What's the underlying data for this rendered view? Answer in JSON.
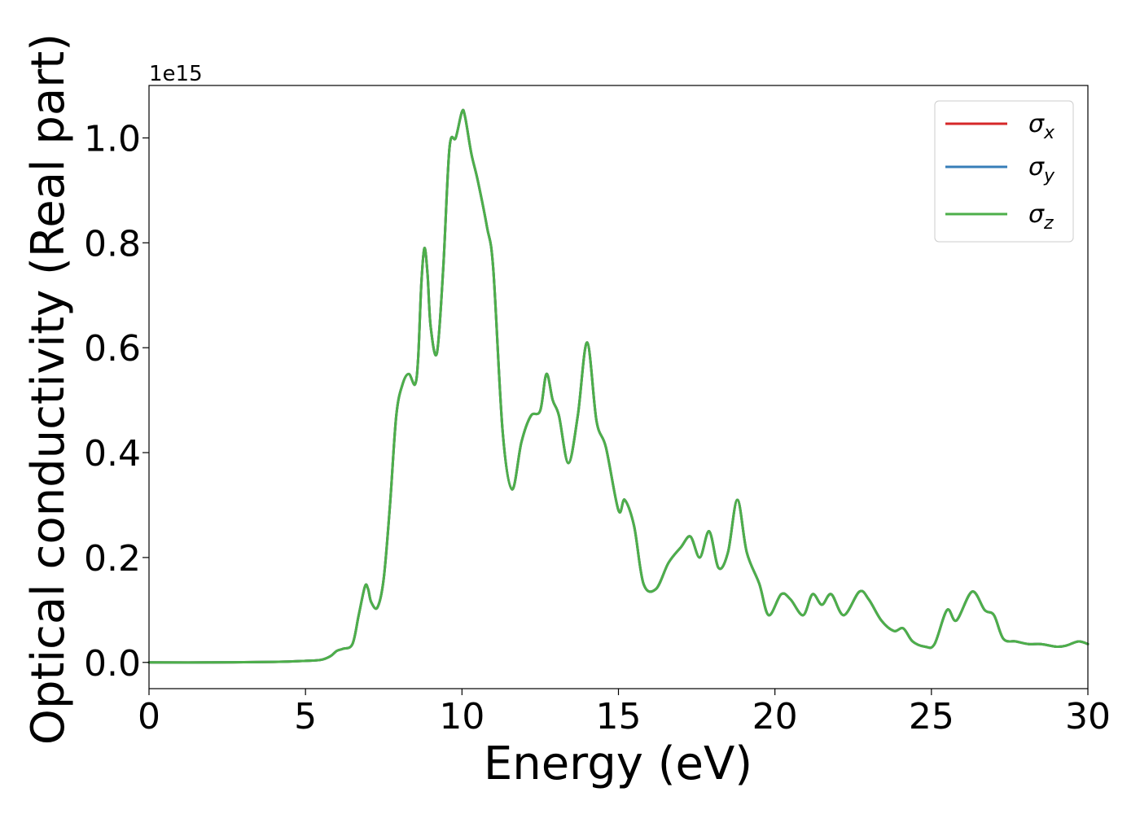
{
  "chart_data": {
    "type": "line",
    "title": "",
    "xlabel": "Energy (eV)",
    "ylabel": "Optical conductivity (Real part)",
    "y_scale_label": "1e15",
    "xlim": [
      0,
      30
    ],
    "ylim": [
      -0.05,
      1.1
    ],
    "x_ticks": [
      0,
      5,
      10,
      15,
      20,
      25,
      30
    ],
    "x_tick_labels": [
      "0",
      "5",
      "10",
      "15",
      "20",
      "25",
      "30"
    ],
    "y_ticks": [
      0.0,
      0.2,
      0.4,
      0.6,
      0.8,
      1.0
    ],
    "y_tick_labels": [
      "0.0",
      "0.2",
      "0.4",
      "0.6",
      "0.8",
      "1.0"
    ],
    "grid": false,
    "legend_position": "top-right",
    "legend": [
      {
        "label": "σ",
        "sub": "x",
        "color": "#d62728"
      },
      {
        "label": "σ",
        "sub": "y",
        "color": "#377eb8"
      },
      {
        "label": "σ",
        "sub": "z",
        "color": "#4daf4a"
      }
    ],
    "series": [
      {
        "name": "σx",
        "color": "#d62728",
        "x": [
          0,
          2,
          4,
          5,
          5.5,
          5.8,
          6.0,
          6.2,
          6.5,
          6.7,
          6.9,
          7.0,
          7.1,
          7.3,
          7.5,
          7.7,
          7.9,
          8.1,
          8.3,
          8.5,
          8.6,
          8.7,
          8.8,
          8.9,
          9.0,
          9.2,
          9.4,
          9.6,
          9.8,
          10.0,
          10.1,
          10.3,
          10.5,
          10.8,
          11.0,
          11.3,
          11.6,
          11.9,
          12.2,
          12.5,
          12.7,
          12.9,
          13.1,
          13.4,
          13.7,
          14.0,
          14.3,
          14.6,
          15.0,
          15.2,
          15.5,
          15.8,
          16.2,
          16.6,
          17.0,
          17.3,
          17.6,
          17.9,
          18.2,
          18.5,
          18.8,
          19.1,
          19.5,
          19.8,
          20.2,
          20.5,
          20.9,
          21.2,
          21.5,
          21.8,
          22.2,
          22.7,
          23.0,
          23.4,
          23.8,
          24.1,
          24.4,
          24.8,
          25.1,
          25.5,
          25.8,
          26.3,
          26.7,
          27.0,
          27.3,
          27.7,
          28.1,
          28.5,
          29.0,
          29.3,
          29.7,
          30.0
        ],
        "values": [
          0.0,
          0.0,
          0.001,
          0.003,
          0.005,
          0.012,
          0.022,
          0.026,
          0.035,
          0.09,
          0.145,
          0.14,
          0.115,
          0.105,
          0.16,
          0.3,
          0.47,
          0.53,
          0.55,
          0.53,
          0.58,
          0.72,
          0.79,
          0.74,
          0.64,
          0.59,
          0.75,
          0.98,
          1.0,
          1.05,
          1.04,
          0.97,
          0.92,
          0.83,
          0.75,
          0.44,
          0.33,
          0.42,
          0.47,
          0.48,
          0.55,
          0.5,
          0.47,
          0.38,
          0.47,
          0.61,
          0.46,
          0.41,
          0.29,
          0.31,
          0.26,
          0.15,
          0.14,
          0.19,
          0.22,
          0.24,
          0.2,
          0.25,
          0.18,
          0.21,
          0.31,
          0.21,
          0.15,
          0.09,
          0.13,
          0.12,
          0.09,
          0.13,
          0.11,
          0.13,
          0.09,
          0.135,
          0.12,
          0.08,
          0.06,
          0.065,
          0.04,
          0.03,
          0.035,
          0.1,
          0.08,
          0.135,
          0.1,
          0.09,
          0.045,
          0.04,
          0.035,
          0.035,
          0.03,
          0.032,
          0.04,
          0.035
        ]
      },
      {
        "name": "σy",
        "color": "#377eb8",
        "x": [
          0,
          2,
          4,
          5,
          5.5,
          5.8,
          6.0,
          6.2,
          6.5,
          6.7,
          6.9,
          7.0,
          7.1,
          7.3,
          7.5,
          7.7,
          7.9,
          8.1,
          8.3,
          8.5,
          8.6,
          8.7,
          8.8,
          8.9,
          9.0,
          9.2,
          9.4,
          9.6,
          9.8,
          10.0,
          10.1,
          10.3,
          10.5,
          10.8,
          11.0,
          11.3,
          11.6,
          11.9,
          12.2,
          12.5,
          12.7,
          12.9,
          13.1,
          13.4,
          13.7,
          14.0,
          14.3,
          14.6,
          15.0,
          15.2,
          15.5,
          15.8,
          16.2,
          16.6,
          17.0,
          17.3,
          17.6,
          17.9,
          18.2,
          18.5,
          18.8,
          19.1,
          19.5,
          19.8,
          20.2,
          20.5,
          20.9,
          21.2,
          21.5,
          21.8,
          22.2,
          22.7,
          23.0,
          23.4,
          23.8,
          24.1,
          24.4,
          24.8,
          25.1,
          25.5,
          25.8,
          26.3,
          26.7,
          27.0,
          27.3,
          27.7,
          28.1,
          28.5,
          29.0,
          29.3,
          29.7,
          30.0
        ],
        "values": [
          0.0,
          0.0,
          0.001,
          0.003,
          0.005,
          0.012,
          0.022,
          0.026,
          0.035,
          0.09,
          0.145,
          0.14,
          0.115,
          0.105,
          0.16,
          0.3,
          0.47,
          0.53,
          0.55,
          0.53,
          0.58,
          0.72,
          0.79,
          0.74,
          0.64,
          0.59,
          0.75,
          0.98,
          1.0,
          1.05,
          1.04,
          0.97,
          0.92,
          0.83,
          0.75,
          0.44,
          0.33,
          0.42,
          0.47,
          0.48,
          0.55,
          0.5,
          0.47,
          0.38,
          0.47,
          0.61,
          0.46,
          0.41,
          0.29,
          0.31,
          0.26,
          0.15,
          0.14,
          0.19,
          0.22,
          0.24,
          0.2,
          0.25,
          0.18,
          0.21,
          0.31,
          0.21,
          0.15,
          0.09,
          0.13,
          0.12,
          0.09,
          0.13,
          0.11,
          0.13,
          0.09,
          0.135,
          0.12,
          0.08,
          0.06,
          0.065,
          0.04,
          0.03,
          0.035,
          0.1,
          0.08,
          0.135,
          0.1,
          0.09,
          0.045,
          0.04,
          0.035,
          0.035,
          0.03,
          0.032,
          0.04,
          0.035
        ]
      },
      {
        "name": "σz",
        "color": "#4daf4a",
        "x": [
          0,
          2,
          4,
          5,
          5.5,
          5.8,
          6.0,
          6.2,
          6.5,
          6.7,
          6.9,
          7.0,
          7.1,
          7.3,
          7.5,
          7.7,
          7.9,
          8.1,
          8.3,
          8.5,
          8.6,
          8.7,
          8.8,
          8.9,
          9.0,
          9.2,
          9.4,
          9.6,
          9.8,
          10.0,
          10.1,
          10.3,
          10.5,
          10.8,
          11.0,
          11.3,
          11.6,
          11.9,
          12.2,
          12.5,
          12.7,
          12.9,
          13.1,
          13.4,
          13.7,
          14.0,
          14.3,
          14.6,
          15.0,
          15.2,
          15.5,
          15.8,
          16.2,
          16.6,
          17.0,
          17.3,
          17.6,
          17.9,
          18.2,
          18.5,
          18.8,
          19.1,
          19.5,
          19.8,
          20.2,
          20.5,
          20.9,
          21.2,
          21.5,
          21.8,
          22.2,
          22.7,
          23.0,
          23.4,
          23.8,
          24.1,
          24.4,
          24.8,
          25.1,
          25.5,
          25.8,
          26.3,
          26.7,
          27.0,
          27.3,
          27.7,
          28.1,
          28.5,
          29.0,
          29.3,
          29.7,
          30.0
        ],
        "values": [
          0.0,
          0.0,
          0.001,
          0.003,
          0.005,
          0.012,
          0.022,
          0.026,
          0.035,
          0.09,
          0.145,
          0.14,
          0.115,
          0.105,
          0.16,
          0.3,
          0.47,
          0.53,
          0.55,
          0.53,
          0.58,
          0.72,
          0.79,
          0.74,
          0.64,
          0.59,
          0.75,
          0.98,
          1.0,
          1.05,
          1.04,
          0.97,
          0.92,
          0.83,
          0.75,
          0.44,
          0.33,
          0.42,
          0.47,
          0.48,
          0.55,
          0.5,
          0.47,
          0.38,
          0.47,
          0.61,
          0.46,
          0.41,
          0.29,
          0.31,
          0.26,
          0.15,
          0.14,
          0.19,
          0.22,
          0.24,
          0.2,
          0.25,
          0.18,
          0.21,
          0.31,
          0.21,
          0.15,
          0.09,
          0.13,
          0.12,
          0.09,
          0.13,
          0.11,
          0.13,
          0.09,
          0.135,
          0.12,
          0.08,
          0.06,
          0.065,
          0.04,
          0.03,
          0.035,
          0.1,
          0.08,
          0.135,
          0.1,
          0.09,
          0.045,
          0.04,
          0.035,
          0.035,
          0.03,
          0.032,
          0.04,
          0.035
        ]
      }
    ]
  }
}
